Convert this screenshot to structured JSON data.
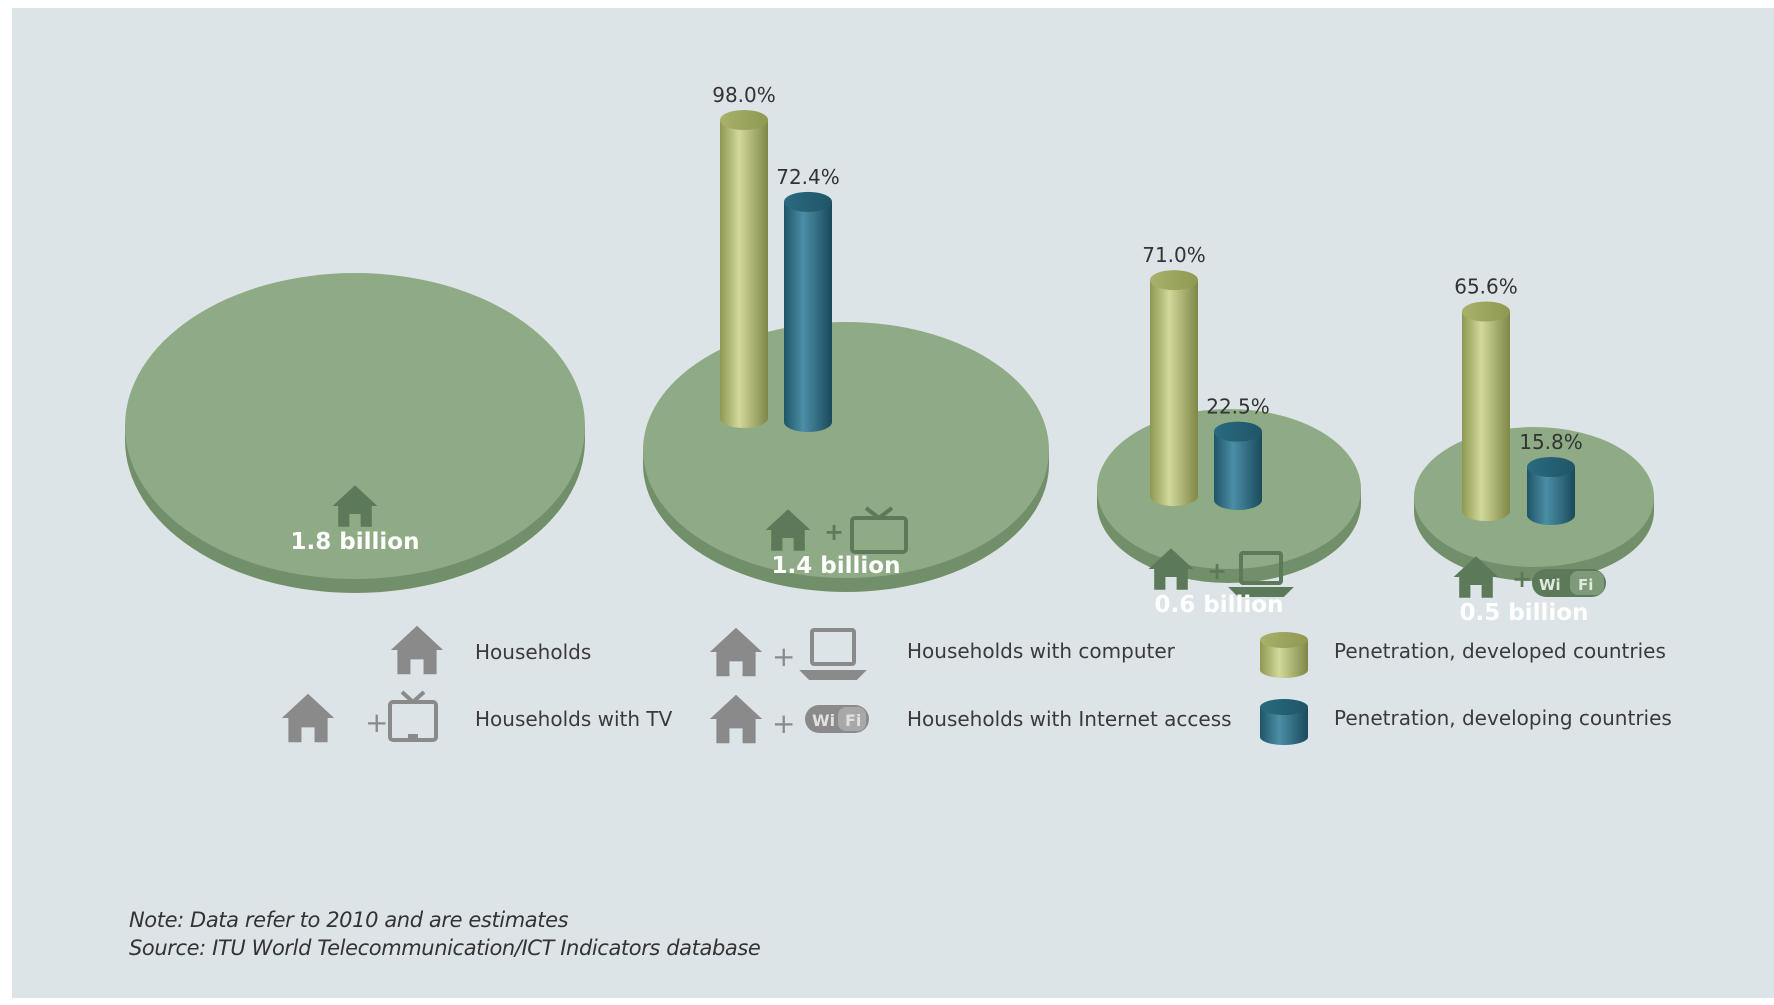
{
  "chart_data": {
    "type": "bar",
    "categories": [
      "Households",
      "Households with TV",
      "Households with computer",
      "Households with Internet access"
    ],
    "disc_labels": [
      "1.8 billion",
      "1.4 billion",
      "0.6 billion",
      "0.5 billion"
    ],
    "households_billions": [
      1.8,
      1.4,
      0.6,
      0.5
    ],
    "series": [
      {
        "name": "Penetration, developed countries",
        "values": [
          null,
          98.0,
          71.0,
          65.6
        ],
        "labels": [
          "",
          "98.0%",
          "71.0%",
          "65.6%"
        ]
      },
      {
        "name": "Penetration, developing countries",
        "values": [
          null,
          72.4,
          22.5,
          15.8
        ],
        "labels": [
          "",
          "72.4%",
          "22.5%",
          "15.8%"
        ]
      }
    ],
    "colors": {
      "developed": "#b8c07a",
      "developing": "#2f6f86",
      "disc": "#8fab85",
      "disc_edge": "#71906a",
      "icon": "#5c7a5a",
      "legend_icon": "#8a8a8a",
      "background": "#dde4e7"
    }
  },
  "legend": {
    "households": "Households",
    "households_tv": "Households with TV",
    "households_computer": "Households with computer",
    "households_internet": "Households with Internet access",
    "developed": "Penetration, developed countries",
    "developing": "Penetration, developing countries"
  },
  "icons": {
    "house": "house-icon",
    "tv": "tv-icon",
    "laptop": "laptop-icon",
    "wifi": "wifi-icon",
    "plus": "+",
    "wifi_text_1": "Wi",
    "wifi_text_2": "Fi"
  },
  "note": {
    "line1": "Note: Data refer to 2010 and are estimates",
    "line2": "Source: ITU World Telecommunication/ICT Indicators database"
  }
}
